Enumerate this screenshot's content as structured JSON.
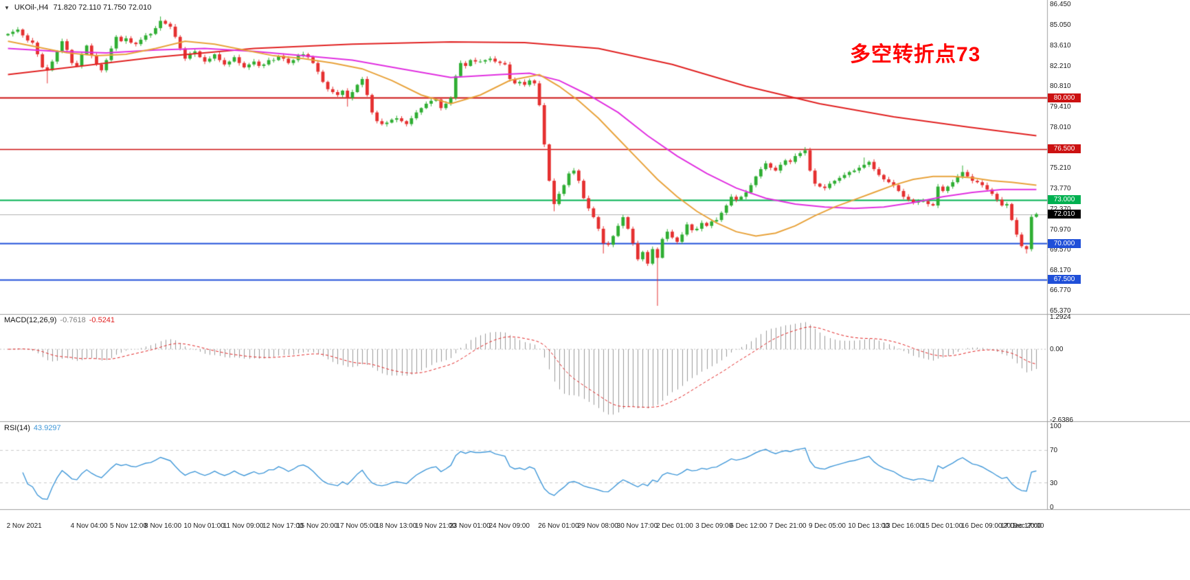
{
  "window": {
    "collapse_icon": "▼",
    "symbol_title": "UKOil-,H4",
    "ohlc_text": "71.820 72.110 71.750 72.010"
  },
  "annotation": {
    "text": "多空转折点73",
    "color": "#ff0000"
  },
  "colors": {
    "up": "#2fae33",
    "down": "#e53030",
    "macd_histogram": "#999999",
    "macd_signal": "#e02020",
    "rsi_line": "#3f97d8",
    "separator": "#9e9e9e",
    "bid_line": "#b0b0b0"
  },
  "levels": [
    {
      "label": "80.000",
      "value": 80.0,
      "color": "#cc1111",
      "width": 2,
      "badge_bg": "#cc1111"
    },
    {
      "label": "76.500",
      "value": 76.5,
      "color": "#cc1111",
      "width": 1.5,
      "badge_bg": "#cc1111"
    },
    {
      "label": "73.000",
      "value": 73.0,
      "color": "#00b050",
      "width": 2,
      "badge_bg": "#00b050"
    },
    {
      "label": "70.000",
      "value": 70.0,
      "color": "#1f4fd8",
      "width": 2,
      "badge_bg": "#1f4fd8"
    },
    {
      "label": "67.500",
      "value": 67.5,
      "color": "#1f4fd8",
      "width": 2,
      "badge_bg": "#1f4fd8"
    }
  ],
  "current_price": {
    "value": 72.01,
    "label": "72.010",
    "badge_bg": "#000000"
  },
  "moving_averages": [
    {
      "name": "slow-ma",
      "color": "#e02020",
      "points": [
        [
          0,
          81.6
        ],
        [
          15,
          82.2
        ],
        [
          30,
          82.8
        ],
        [
          50,
          83.4
        ],
        [
          70,
          83.7
        ],
        [
          90,
          83.85
        ],
        [
          105,
          83.8
        ],
        [
          120,
          83.4
        ],
        [
          135,
          82.3
        ],
        [
          150,
          80.8
        ],
        [
          165,
          79.6
        ],
        [
          180,
          78.7
        ],
        [
          195,
          78.0
        ],
        [
          209,
          77.4
        ]
      ]
    },
    {
      "name": "mid-ma",
      "color": "#e02ee0",
      "points": [
        [
          0,
          83.4
        ],
        [
          10,
          83.2
        ],
        [
          20,
          83.1
        ],
        [
          30,
          83.3
        ],
        [
          40,
          83.4
        ],
        [
          50,
          83.2
        ],
        [
          60,
          82.9
        ],
        [
          70,
          82.6
        ],
        [
          80,
          82.0
        ],
        [
          90,
          81.4
        ],
        [
          100,
          81.6
        ],
        [
          106,
          81.7
        ],
        [
          112,
          81.2
        ],
        [
          118,
          80.2
        ],
        [
          124,
          79.0
        ],
        [
          130,
          77.4
        ],
        [
          136,
          76.0
        ],
        [
          142,
          74.8
        ],
        [
          148,
          73.8
        ],
        [
          154,
          73.1
        ],
        [
          160,
          72.7
        ],
        [
          166,
          72.5
        ],
        [
          172,
          72.4
        ],
        [
          178,
          72.5
        ],
        [
          184,
          72.8
        ],
        [
          190,
          73.2
        ],
        [
          196,
          73.5
        ],
        [
          202,
          73.7
        ],
        [
          209,
          73.7
        ]
      ]
    },
    {
      "name": "fast-ma",
      "color": "#e8a23a",
      "points": [
        [
          0,
          83.9
        ],
        [
          6,
          83.5
        ],
        [
          12,
          83.1
        ],
        [
          18,
          82.9
        ],
        [
          24,
          83.0
        ],
        [
          30,
          83.4
        ],
        [
          36,
          83.9
        ],
        [
          42,
          83.7
        ],
        [
          48,
          83.3
        ],
        [
          54,
          82.9
        ],
        [
          60,
          82.7
        ],
        [
          66,
          82.4
        ],
        [
          72,
          82.0
        ],
        [
          78,
          81.2
        ],
        [
          84,
          80.2
        ],
        [
          90,
          79.6
        ],
        [
          96,
          80.2
        ],
        [
          102,
          81.2
        ],
        [
          108,
          81.6
        ],
        [
          112,
          80.8
        ],
        [
          116,
          79.8
        ],
        [
          120,
          78.6
        ],
        [
          124,
          77.2
        ],
        [
          128,
          75.8
        ],
        [
          132,
          74.4
        ],
        [
          136,
          73.2
        ],
        [
          140,
          72.2
        ],
        [
          144,
          71.4
        ],
        [
          148,
          70.8
        ],
        [
          152,
          70.5
        ],
        [
          156,
          70.7
        ],
        [
          160,
          71.2
        ],
        [
          164,
          71.9
        ],
        [
          168,
          72.5
        ],
        [
          172,
          73.0
        ],
        [
          176,
          73.5
        ],
        [
          180,
          74.0
        ],
        [
          184,
          74.4
        ],
        [
          188,
          74.6
        ],
        [
          192,
          74.6
        ],
        [
          196,
          74.5
        ],
        [
          200,
          74.3
        ],
        [
          204,
          74.2
        ],
        [
          209,
          74.0
        ]
      ]
    }
  ],
  "price_axis": {
    "labels": [
      "86.450",
      "85.050",
      "83.610",
      "82.210",
      "80.810",
      "79.410",
      "78.010",
      "75.210",
      "73.770",
      "72.370",
      "70.970",
      "69.570",
      "68.170",
      "66.770",
      "65.370"
    ]
  },
  "chart_data": {
    "type": "candlestick",
    "title": "UKOil-,H4",
    "symbol": "UKOil-",
    "timeframe": "H4",
    "ylim": [
      65.37,
      86.45
    ],
    "x_labels": [
      {
        "text": "2 Nov 2021",
        "i": 0
      },
      {
        "text": "4 Nov 04:00",
        "i": 13
      },
      {
        "text": "5 Nov 12:00",
        "i": 21
      },
      {
        "text": "8 Nov 16:00",
        "i": 28
      },
      {
        "text": "10 Nov 01:00",
        "i": 36
      },
      {
        "text": "11 Nov 09:00",
        "i": 44
      },
      {
        "text": "12 Nov 17:00",
        "i": 52
      },
      {
        "text": "15 Nov 20:00",
        "i": 59
      },
      {
        "text": "17 Nov 05:00",
        "i": 67
      },
      {
        "text": "18 Nov 13:00",
        "i": 75
      },
      {
        "text": "19 Nov 21:00",
        "i": 83
      },
      {
        "text": "23 Nov 01:00",
        "i": 90
      },
      {
        "text": "24 Nov 09:00",
        "i": 98
      },
      {
        "text": "26 Nov 01:00",
        "i": 108
      },
      {
        "text": "29 Nov 08:00",
        "i": 116
      },
      {
        "text": "30 Nov 17:00",
        "i": 124
      },
      {
        "text": "2 Dec 01:00",
        "i": 132
      },
      {
        "text": "3 Dec 09:00",
        "i": 140
      },
      {
        "text": "6 Dec 12:00",
        "i": 147
      },
      {
        "text": "7 Dec 21:00",
        "i": 155
      },
      {
        "text": "9 Dec 05:00",
        "i": 163
      },
      {
        "text": "10 Dec 13:00",
        "i": 171
      },
      {
        "text": "13 Dec 16:00",
        "i": 178
      },
      {
        "text": "15 Dec 01:00",
        "i": 186
      },
      {
        "text": "16 Dec 09:00",
        "i": 194
      },
      {
        "text": "17 Dec 17:00",
        "i": 202
      },
      {
        "text": "20 Dec 20:00",
        "i": 209
      }
    ],
    "candles": {
      "first_open": 84.3,
      "closes": [
        84.4,
        84.55,
        84.7,
        84.3,
        83.95,
        83.8,
        83.0,
        82.1,
        81.9,
        82.5,
        83.2,
        83.9,
        83.3,
        82.4,
        82.2,
        83.0,
        83.6,
        82.9,
        82.3,
        81.9,
        82.6,
        83.4,
        84.2,
        83.9,
        84.1,
        83.8,
        83.7,
        84.0,
        84.3,
        84.4,
        84.8,
        85.3,
        85.1,
        84.9,
        84.2,
        83.4,
        82.7,
        83.0,
        83.2,
        82.8,
        82.5,
        82.7,
        83.0,
        82.6,
        82.3,
        82.5,
        82.8,
        82.4,
        82.1,
        82.3,
        82.5,
        82.2,
        82.3,
        82.6,
        82.6,
        82.9,
        82.7,
        82.4,
        82.6,
        82.9,
        83.0,
        82.8,
        82.4,
        81.8,
        81.1,
        80.6,
        80.4,
        80.2,
        80.5,
        80.0,
        80.4,
        80.9,
        81.3,
        80.2,
        79.0,
        78.4,
        78.2,
        78.3,
        78.5,
        78.6,
        78.4,
        78.2,
        78.6,
        79.0,
        79.3,
        79.6,
        79.8,
        79.9,
        79.3,
        79.6,
        80.0,
        81.5,
        82.4,
        82.2,
        82.6,
        82.5,
        82.5,
        82.6,
        82.7,
        82.5,
        82.4,
        82.3,
        81.3,
        81.0,
        81.1,
        80.9,
        81.2,
        81.0,
        79.5,
        76.8,
        74.3,
        72.7,
        73.4,
        74.0,
        74.8,
        75.0,
        74.3,
        73.1,
        72.4,
        71.8,
        71.0,
        70.0,
        69.9,
        70.5,
        71.2,
        71.8,
        71.0,
        70.0,
        68.9,
        69.4,
        68.6,
        69.6,
        69.0,
        70.3,
        70.8,
        70.4,
        70.1,
        70.6,
        71.3,
        70.9,
        71.0,
        71.4,
        71.2,
        71.5,
        71.6,
        72.1,
        72.6,
        73.2,
        73.0,
        73.2,
        73.5,
        74.0,
        74.6,
        75.1,
        75.5,
        75.2,
        75.0,
        75.4,
        75.7,
        75.6,
        76.0,
        76.2,
        76.4,
        75.0,
        74.1,
        73.9,
        73.8,
        74.1,
        74.3,
        74.5,
        74.7,
        74.9,
        75.0,
        75.2,
        75.4,
        75.6,
        75.1,
        74.7,
        74.4,
        74.2,
        74.0,
        73.6,
        73.2,
        73.0,
        72.8,
        72.9,
        72.9,
        72.7,
        72.6,
        73.9,
        73.6,
        73.9,
        74.2,
        74.6,
        74.9,
        74.6,
        74.3,
        74.2,
        74.0,
        73.7,
        73.4,
        73.0,
        72.6,
        72.7,
        71.6,
        70.6,
        69.8,
        69.6,
        71.82,
        72.01
      ],
      "wick_overrides": {
        "8": {
          "l": 81.0
        },
        "31": {
          "h": 85.6
        },
        "69": {
          "l": 79.4
        },
        "111": {
          "l": 72.2
        },
        "121": {
          "l": 69.3
        },
        "132": {
          "l": 65.7
        },
        "162": {
          "h": 76.62
        },
        "174": {
          "h": 75.9
        },
        "194": {
          "h": 75.35
        },
        "207": {
          "l": 69.3
        },
        "209": {
          "h": 72.11,
          "l": 71.75
        }
      }
    },
    "indicators": {
      "macd": {
        "label": "MACD(12,26,9)",
        "value_main": "-0.7618",
        "value_signal": "-0.5241",
        "axis": [
          "1.2924",
          "0.00",
          "-2.6386"
        ]
      },
      "rsi": {
        "label": "RSI(14)",
        "value": "43.9297",
        "levels": [
          70,
          30
        ],
        "axis": [
          {
            "text": "100",
            "value": 100
          },
          {
            "text": "70",
            "value": 70
          },
          {
            "text": "30",
            "value": 30
          },
          {
            "text": "0",
            "value": 0
          }
        ]
      }
    }
  }
}
